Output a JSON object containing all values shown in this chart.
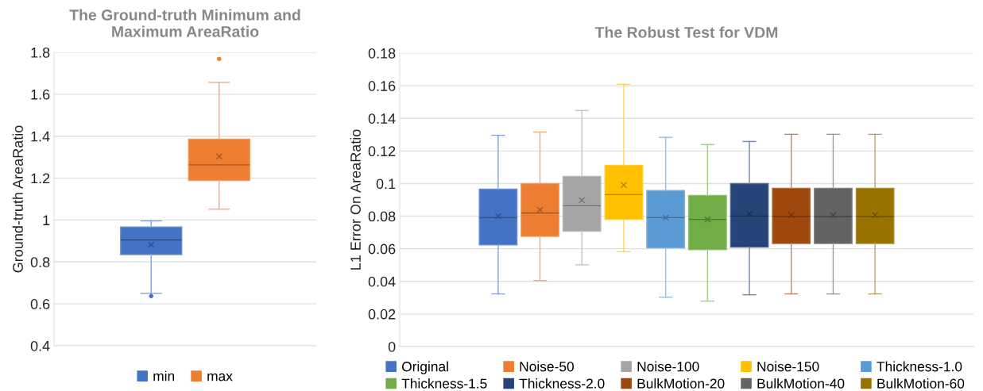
{
  "chart_data": [
    {
      "type": "box",
      "title": "The Ground-truth Minimum and\nMaximum AreaRatio",
      "ylabel": "Ground-truth AreaRatio",
      "categories": [
        null
      ],
      "ylim": [
        0.4,
        1.8
      ],
      "yticks": [
        0.4,
        0.6,
        0.8,
        1,
        1.2,
        1.4,
        1.6,
        1.8
      ],
      "grid": "y",
      "legend": "bottom",
      "tick_labels": "y",
      "series": [
        {
          "name": "min",
          "color": "#4472c4",
          "boxes": [
            {
              "low": 0.65,
              "q1": 0.835,
              "median": 0.905,
              "q3": 0.967,
              "high": 0.996,
              "mean": 0.882,
              "outliers": [
                0.637
              ]
            }
          ]
        },
        {
          "name": "max",
          "color": "#ed7d31",
          "boxes": [
            {
              "low": 1.052,
              "q1": 1.189,
              "median": 1.263,
              "q3": 1.386,
              "high": 1.657,
              "mean": 1.303,
              "outliers": [
                1.769
              ]
            }
          ]
        }
      ]
    },
    {
      "type": "box",
      "title": "The Robust Test for VDM",
      "ylabel": "L1 Error On AreaRatio",
      "categories": [
        null
      ],
      "ylim": [
        0,
        0.18
      ],
      "yticks": [
        0,
        0.02,
        0.04,
        0.06,
        0.08,
        0.1,
        0.12,
        0.14,
        0.16,
        0.18
      ],
      "grid": "y",
      "legend": "bottom",
      "tick_labels": "y",
      "series": [
        {
          "name": "Original",
          "color": "#4472c4",
          "boxes": [
            {
              "low": 0.0323,
              "q1": 0.0624,
              "median": 0.0791,
              "q3": 0.0966,
              "high": 0.1296,
              "mean": 0.08
            }
          ]
        },
        {
          "name": "Noise-50",
          "color": "#ed7d31",
          "boxes": [
            {
              "low": 0.0405,
              "q1": 0.0676,
              "median": 0.082,
              "q3": 0.1,
              "high": 0.1316,
              "mean": 0.0838
            }
          ]
        },
        {
          "name": "Noise-100",
          "color": "#a5a5a5",
          "boxes": [
            {
              "low": 0.0502,
              "q1": 0.0708,
              "median": 0.0864,
              "q3": 0.1044,
              "high": 0.1448,
              "mean": 0.0898
            }
          ]
        },
        {
          "name": "Noise-150",
          "color": "#ffc000",
          "boxes": [
            {
              "low": 0.0582,
              "q1": 0.078,
              "median": 0.0932,
              "q3": 0.1112,
              "high": 0.1609,
              "mean": 0.0991
            }
          ]
        },
        {
          "name": "Thickness-1.0",
          "color": "#5b9bd5",
          "boxes": [
            {
              "low": 0.0303,
              "q1": 0.0605,
              "median": 0.0791,
              "q3": 0.0957,
              "high": 0.1283,
              "mean": 0.0791
            }
          ]
        },
        {
          "name": "Thickness-1.5",
          "color": "#70ad47",
          "boxes": [
            {
              "low": 0.0279,
              "q1": 0.0595,
              "median": 0.078,
              "q3": 0.0927,
              "high": 0.1239,
              "mean": 0.078
            }
          ]
        },
        {
          "name": "Thickness-2.0",
          "color": "#264478",
          "boxes": [
            {
              "low": 0.0318,
              "q1": 0.061,
              "median": 0.0801,
              "q3": 0.1,
              "high": 0.1258,
              "mean": 0.0814
            }
          ]
        },
        {
          "name": "BulkMotion-20",
          "color": "#9e480e",
          "boxes": [
            {
              "low": 0.0323,
              "q1": 0.0632,
              "median": 0.0798,
              "q3": 0.0971,
              "high": 0.1302,
              "mean": 0.0806
            }
          ]
        },
        {
          "name": "BulkMotion-40",
          "color": "#636363",
          "boxes": [
            {
              "low": 0.0323,
              "q1": 0.0632,
              "median": 0.0798,
              "q3": 0.0971,
              "high": 0.1302,
              "mean": 0.0806
            }
          ]
        },
        {
          "name": "BulkMotion-60",
          "color": "#997300",
          "boxes": [
            {
              "low": 0.0323,
              "q1": 0.0632,
              "median": 0.0798,
              "q3": 0.0971,
              "high": 0.1302,
              "mean": 0.0806
            }
          ]
        }
      ]
    }
  ]
}
